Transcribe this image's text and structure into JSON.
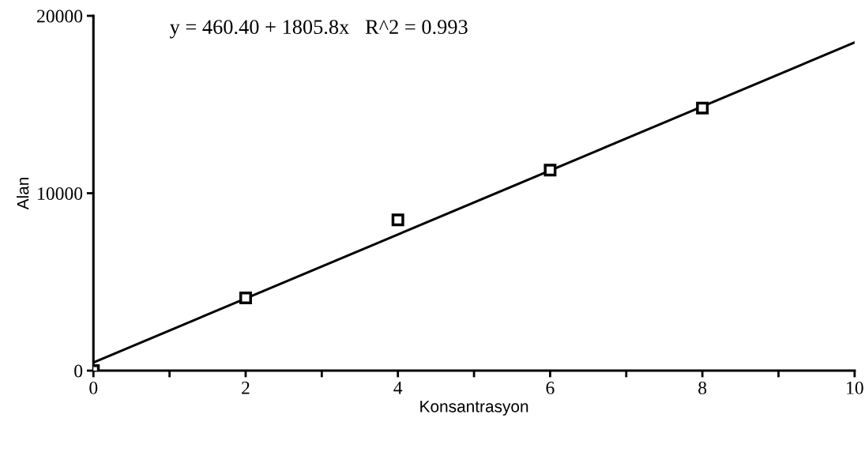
{
  "chart_data": {
    "type": "scatter",
    "xlabel": "Konsantrasyon",
    "ylabel": "Alan",
    "annotations": [
      "y = 460.40 + 1805.8x   R^2 = 0.993"
    ],
    "xlim": [
      0,
      10
    ],
    "ylim": [
      0,
      20000
    ],
    "xticks": [
      0,
      {
        "value": 1,
        "label": null
      },
      2,
      {
        "value": 3,
        "label": null
      },
      4,
      {
        "value": 5,
        "label": null
      },
      6,
      {
        "value": 7,
        "label": null
      },
      8,
      {
        "value": 9,
        "label": null
      },
      10
    ],
    "yticks": [
      0,
      10000,
      20000
    ],
    "grid": false,
    "marker": "square",
    "series": [
      {
        "color": "#000000",
        "x": [
          0,
          2,
          4,
          6,
          8
        ],
        "values": [
          0,
          4100,
          8500,
          11300,
          14800
        ]
      },
      {
        "type": "line",
        "marker": "none",
        "color": "#000000",
        "x": [
          0,
          10
        ],
        "values": [
          460,
          18500
        ]
      }
    ]
  }
}
